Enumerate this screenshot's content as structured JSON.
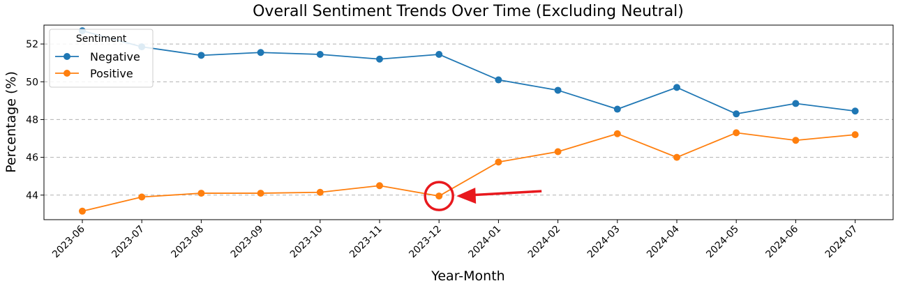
{
  "chart_data": {
    "type": "line",
    "title": "Overall Sentiment Trends Over Time (Excluding Neutral)",
    "xlabel": "Year-Month",
    "ylabel": "Percentage (%)",
    "categories": [
      "2023-06",
      "2023-07",
      "2023-08",
      "2023-09",
      "2023-10",
      "2023-11",
      "2023-12",
      "2024-01",
      "2024-02",
      "2024-03",
      "2024-04",
      "2024-05",
      "2024-06",
      "2024-07"
    ],
    "ylim": [
      42.7,
      53.0
    ],
    "yticks": [
      44,
      46,
      48,
      50,
      52
    ],
    "grid": "horizontal-dashed",
    "legend": {
      "title": "Sentiment",
      "placement": "top-left"
    },
    "series": [
      {
        "name": "Negative",
        "color": "#1f77b4",
        "values": [
          52.7,
          51.85,
          51.4,
          51.55,
          51.45,
          51.2,
          51.45,
          50.1,
          49.55,
          48.55,
          49.7,
          48.3,
          48.85,
          48.45
        ]
      },
      {
        "name": "Positive",
        "color": "#ff7f0e",
        "values": [
          43.15,
          43.9,
          44.1,
          44.1,
          44.15,
          44.5,
          43.95,
          45.75,
          46.3,
          47.25,
          46.0,
          47.3,
          46.9,
          47.2
        ]
      }
    ],
    "annotation": {
      "type": "circle-and-arrow",
      "category": "2023-12",
      "series": "Positive",
      "color": "#e8191e"
    }
  }
}
